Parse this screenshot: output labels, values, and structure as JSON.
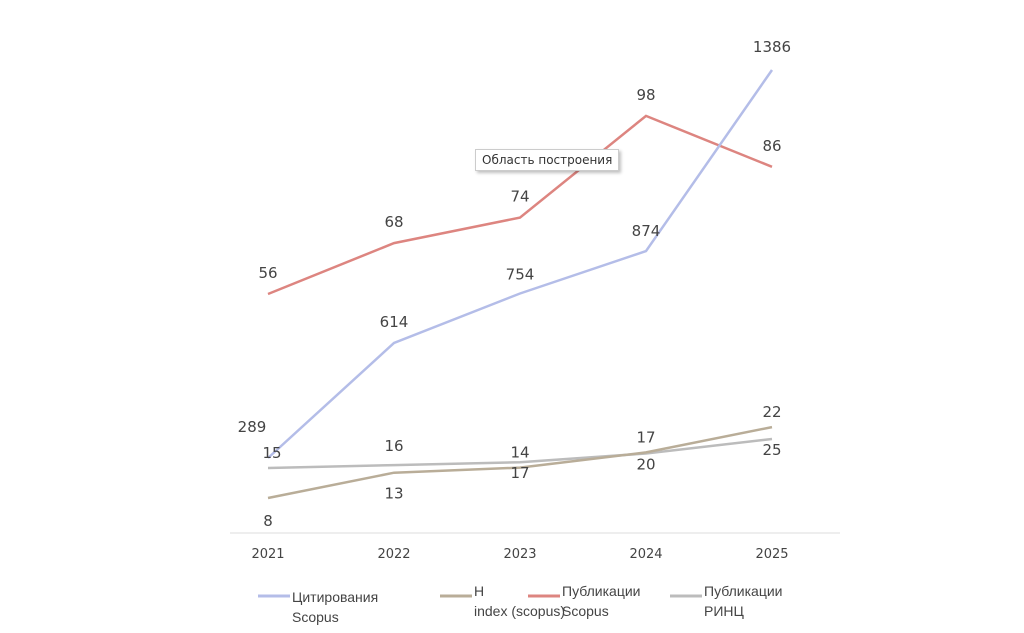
{
  "chart_data": {
    "type": "line",
    "categories": [
      "2021",
      "2022",
      "2023",
      "2024",
      "2025"
    ],
    "series": [
      {
        "name": "Цитирования Scopus",
        "values": [
          289,
          614,
          754,
          874,
          1386
        ],
        "color": "#b4bde8"
      },
      {
        "name": "H index (scopus)",
        "values": [
          8,
          13,
          14,
          17,
          22
        ],
        "color": "#b9ad98"
      },
      {
        "name": "Публикации Scopus",
        "values": [
          56,
          68,
          74,
          98,
          86
        ],
        "color": "#dd8580"
      },
      {
        "name": "Публикации РИНЦ",
        "values": [
          15,
          16,
          17,
          20,
          25
        ],
        "color": "#bcbcbc"
      }
    ],
    "legend": "bottom",
    "grid": false,
    "data_labels": true
  },
  "tooltip": "Область построения"
}
